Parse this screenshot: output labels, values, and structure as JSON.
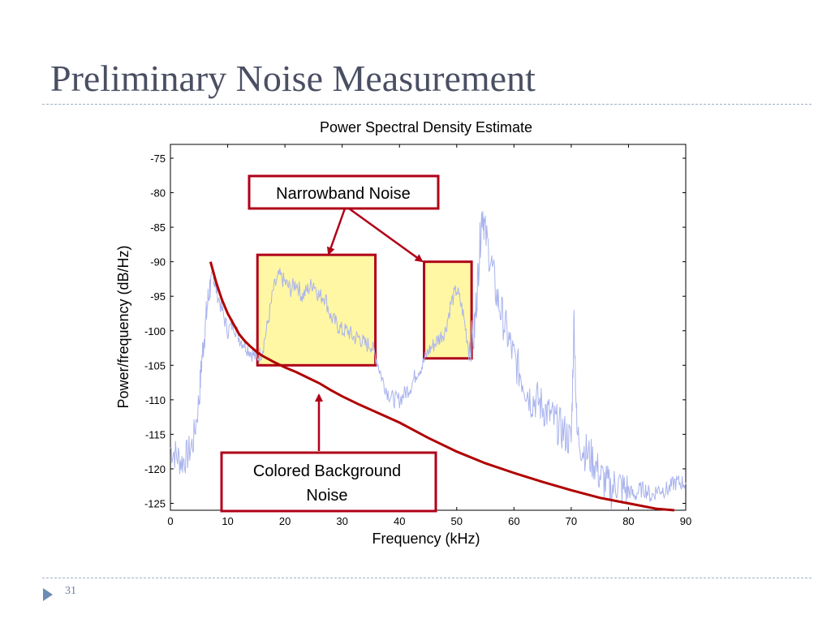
{
  "slide": {
    "title": "Preliminary Noise Measurement",
    "page_number": "31",
    "accent_color": "#4a4f63",
    "bullet_color": "#6b8bb5"
  },
  "chart_data": {
    "type": "line",
    "title": "Power Spectral Density Estimate",
    "xlabel": "Frequency (kHz)",
    "ylabel": "Power/frequency (dB/Hz)",
    "xlim": [
      0,
      90
    ],
    "ylim": [
      -126,
      -73
    ],
    "x_ticks": [
      0,
      10,
      20,
      30,
      40,
      50,
      60,
      70,
      80,
      90
    ],
    "y_ticks": [
      -75,
      -80,
      -85,
      -90,
      -95,
      -100,
      -105,
      -110,
      -115,
      -120,
      -125
    ],
    "grid": false,
    "colors": {
      "psd_line": "#aab4ee",
      "background_fit": "#b00000",
      "highlight_fill": "#fff7a3",
      "highlight_border": "#b00018",
      "callout_border": "#b00018",
      "arrow": "#b00018"
    },
    "series": [
      {
        "role": "psd",
        "x": [
          0,
          1,
          2,
          3,
          4,
          5,
          5.5,
          6,
          6.5,
          7,
          7.5,
          8,
          9,
          10,
          11,
          12,
          13,
          14,
          15,
          16,
          17,
          18,
          19,
          20,
          21,
          22,
          23,
          24,
          25,
          26,
          27,
          28,
          29,
          30,
          31,
          32,
          33,
          34,
          35,
          36,
          37,
          38,
          39,
          40,
          41,
          42,
          43,
          44,
          45,
          46,
          47,
          48,
          49,
          50,
          51,
          52,
          53,
          53.5,
          54,
          54.5,
          55,
          56,
          57,
          58,
          59,
          60,
          61,
          62,
          63,
          64,
          65,
          66,
          67,
          68,
          69,
          70,
          70.5,
          71,
          72,
          73,
          74,
          75,
          76,
          77,
          78,
          79,
          80,
          81,
          82,
          83,
          84,
          85,
          86,
          87,
          88,
          89,
          90
        ],
        "y": [
          -117,
          -118,
          -119,
          -118,
          -116,
          -110,
          -104,
          -100,
          -96,
          -93,
          -92,
          -94,
          -97,
          -100,
          -99,
          -101,
          -102,
          -103,
          -104,
          -103,
          -99,
          -94,
          -92,
          -93,
          -94,
          -93,
          -95,
          -94,
          -93,
          -95,
          -95,
          -98,
          -99,
          -100,
          -100,
          -101,
          -101,
          -102,
          -102,
          -104,
          -107,
          -109,
          -110,
          -110,
          -109,
          -108,
          -106,
          -105,
          -103,
          -102,
          -101,
          -100,
          -96,
          -94,
          -97,
          -102,
          -101,
          -95,
          -88,
          -82,
          -86,
          -90,
          -95,
          -98,
          -101,
          -104,
          -106,
          -108,
          -110,
          -110,
          -111,
          -112,
          -113,
          -114,
          -115,
          -116,
          -98,
          -115,
          -117,
          -118,
          -119,
          -121,
          -122,
          -123,
          -122,
          -123,
          -123,
          -124,
          -123,
          -123,
          -124,
          -123,
          -123,
          -123,
          -122,
          -122,
          -122
        ]
      },
      {
        "role": "background-fit",
        "x": [
          7,
          8,
          9,
          10,
          11,
          12,
          13,
          14,
          15,
          16,
          18,
          20,
          22,
          24,
          26,
          28,
          30,
          33,
          36,
          40,
          45,
          50,
          55,
          60,
          65,
          70,
          75,
          80,
          85,
          88
        ],
        "y": [
          -90,
          -93,
          -95.5,
          -97.5,
          -99,
          -100.5,
          -101.5,
          -102.3,
          -103,
          -103.6,
          -104.5,
          -105.3,
          -106,
          -106.8,
          -107.6,
          -108.6,
          -109.5,
          -110.7,
          -111.8,
          -113.3,
          -115.5,
          -117.5,
          -119.2,
          -120.6,
          -121.9,
          -123.1,
          -124.2,
          -125,
          -125.8,
          -126
        ]
      }
    ],
    "highlight_boxes": [
      {
        "x_range": [
          15.2,
          35.8
        ],
        "y_range": [
          -105,
          -89
        ]
      },
      {
        "x_range": [
          44.3,
          52.6
        ],
        "y_range": [
          -104,
          -90
        ]
      }
    ],
    "annotations": [
      {
        "id": "narrowband",
        "text": "Narrowband Noise"
      },
      {
        "id": "background",
        "line1": "Colored Background",
        "line2": "Noise"
      }
    ]
  }
}
